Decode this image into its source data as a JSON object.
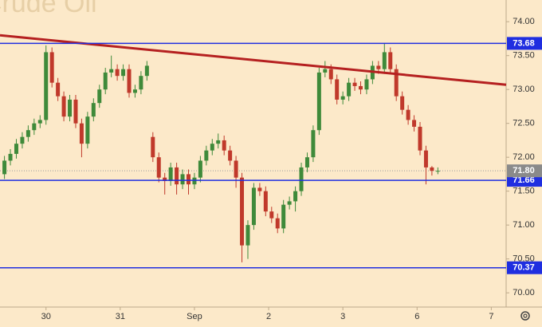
{
  "chart_data": {
    "type": "candlestick",
    "title": "Crude Oil",
    "up_color": "#3f8a3a",
    "down_color": "#c0392b",
    "xlim": [
      -0.62,
      6.2
    ],
    "xticks": [
      {
        "value": 0,
        "label": "30"
      },
      {
        "value": 1,
        "label": "31"
      },
      {
        "value": 2,
        "label": "Sep"
      },
      {
        "value": 3,
        "label": "2"
      },
      {
        "value": 4,
        "label": "3"
      },
      {
        "value": 5,
        "label": "6"
      },
      {
        "value": 6,
        "label": "7"
      }
    ],
    "ylim": [
      69.79,
      74.32
    ],
    "yticks": [
      {
        "value": 74,
        "label": "74.00"
      },
      {
        "value": 73.5,
        "label": "73.50"
      },
      {
        "value": 73,
        "label": "73.00"
      },
      {
        "value": 72.5,
        "label": "72.50"
      },
      {
        "value": 72,
        "label": "72.00"
      },
      {
        "value": 71.5,
        "label": "71.50"
      },
      {
        "value": 71,
        "label": "71.00"
      },
      {
        "value": 70.5,
        "label": "70.50"
      },
      {
        "value": 70,
        "label": "70.00"
      }
    ],
    "x": [
      -0.56,
      -0.48,
      -0.4,
      -0.32,
      -0.24,
      -0.16,
      -0.08,
      0,
      0.08,
      0.16,
      0.24,
      0.32,
      0.4,
      0.48,
      0.56,
      0.64,
      0.72,
      0.8,
      0.88,
      0.96,
      1.04,
      1.12,
      1.2,
      1.28,
      1.36,
      1.44,
      1.52,
      1.6,
      1.68,
      1.76,
      1.84,
      1.92,
      2,
      2.08,
      2.16,
      2.24,
      2.32,
      2.4,
      2.48,
      2.56,
      2.64,
      2.72,
      2.8,
      2.88,
      2.96,
      3.04,
      3.12,
      3.2,
      3.28,
      3.36,
      3.44,
      3.52,
      3.6,
      3.68,
      3.76,
      3.84,
      3.92,
      4,
      4.08,
      4.16,
      4.24,
      4.32,
      4.4,
      4.48,
      4.56,
      4.64,
      4.72,
      4.8,
      4.88,
      4.96,
      5.04,
      5.12,
      5.2,
      5.28
    ],
    "open": [
      71.75,
      71.95,
      72.05,
      72.2,
      72.3,
      72.4,
      72.5,
      72.55,
      73.55,
      73.1,
      72.9,
      72.6,
      72.85,
      72.5,
      72.2,
      72.6,
      72.8,
      73.0,
      73.25,
      73.3,
      73.2,
      73.3,
      72.95,
      73.0,
      73.2,
      72.3,
      72.0,
      71.7,
      71.65,
      71.85,
      71.6,
      71.75,
      71.6,
      71.7,
      71.95,
      72.1,
      72.2,
      72.25,
      72.1,
      71.95,
      71.7,
      70.7,
      71.0,
      71.55,
      71.5,
      71.2,
      71.1,
      70.95,
      71.3,
      71.35,
      71.5,
      71.85,
      72.0,
      72.4,
      73.25,
      73.3,
      73.15,
      72.85,
      72.9,
      73.1,
      73.05,
      73.0,
      73.15,
      73.35,
      73.3,
      73.55,
      73.3,
      72.9,
      72.7,
      72.55,
      72.45,
      72.1,
      71.85,
      71.8
    ],
    "high": [
      72.02,
      72.12,
      72.27,
      72.37,
      72.47,
      72.57,
      72.62,
      73.65,
      73.62,
      73.17,
      72.97,
      72.92,
      72.92,
      72.57,
      72.67,
      72.87,
      73.07,
      73.32,
      73.5,
      73.37,
      73.37,
      73.37,
      73.07,
      73.27,
      73.42,
      72.37,
      72.07,
      71.77,
      71.92,
      71.92,
      71.82,
      71.82,
      71.77,
      72.02,
      72.17,
      72.27,
      72.35,
      72.32,
      72.17,
      72.02,
      71.77,
      71.07,
      71.62,
      71.62,
      71.57,
      71.27,
      71.17,
      71.37,
      71.42,
      71.57,
      71.92,
      72.07,
      72.47,
      73.32,
      73.42,
      73.37,
      73.22,
      72.97,
      73.17,
      73.17,
      73.12,
      73.22,
      73.42,
      73.42,
      73.68,
      73.62,
      73.37,
      72.97,
      72.77,
      72.62,
      72.52,
      72.17,
      71.87,
      71.85
    ],
    "low": [
      71.68,
      71.88,
      71.98,
      72.13,
      72.23,
      72.33,
      72.43,
      72.48,
      73.03,
      72.83,
      72.53,
      72.53,
      72.43,
      72.0,
      72.13,
      72.53,
      72.73,
      72.93,
      73.18,
      73.13,
      73.13,
      72.88,
      72.88,
      72.93,
      73.13,
      71.93,
      71.63,
      71.45,
      71.58,
      71.45,
      71.53,
      71.45,
      71.53,
      71.63,
      71.88,
      72.03,
      72.13,
      72.03,
      71.88,
      71.55,
      70.45,
      70.5,
      70.93,
      71.43,
      71.13,
      71.03,
      70.88,
      70.88,
      71.23,
      71.2,
      71.43,
      71.78,
      71.93,
      72.33,
      73.18,
      73.08,
      72.78,
      72.78,
      72.83,
      72.98,
      72.93,
      72.93,
      73.08,
      73.23,
      73.23,
      73.23,
      72.83,
      72.63,
      72.48,
      72.38,
      72.03,
      71.6,
      71.73,
      71.75
    ],
    "close": [
      71.95,
      72.05,
      72.2,
      72.3,
      72.4,
      72.5,
      72.55,
      73.55,
      73.1,
      72.9,
      72.6,
      72.85,
      72.5,
      72.2,
      72.6,
      72.8,
      73.0,
      73.25,
      73.3,
      73.2,
      73.3,
      72.95,
      73.0,
      73.2,
      73.35,
      72.0,
      71.7,
      71.65,
      71.85,
      71.6,
      71.75,
      71.6,
      71.7,
      71.95,
      72.1,
      72.2,
      72.25,
      72.1,
      71.95,
      71.7,
      70.7,
      71.0,
      71.55,
      71.5,
      71.2,
      71.1,
      70.95,
      71.3,
      71.35,
      71.5,
      71.85,
      72.0,
      72.4,
      73.25,
      73.3,
      73.15,
      72.85,
      72.9,
      73.1,
      73.05,
      73.0,
      73.15,
      73.35,
      73.3,
      73.55,
      73.3,
      72.9,
      72.7,
      72.55,
      72.45,
      72.1,
      71.85,
      71.8,
      71.8
    ],
    "levels": [
      {
        "value": 73.68,
        "label": "73.68"
      },
      {
        "value": 71.66,
        "label": "71.66"
      },
      {
        "value": 70.37,
        "label": "70.37"
      }
    ],
    "level_color": "#1f2ee0",
    "last_price": {
      "value": 71.8,
      "label": "71.80"
    },
    "trendline": {
      "color": "#b52020",
      "x": [
        -0.62,
        6.2
      ],
      "y": [
        73.8,
        73.07
      ]
    }
  }
}
